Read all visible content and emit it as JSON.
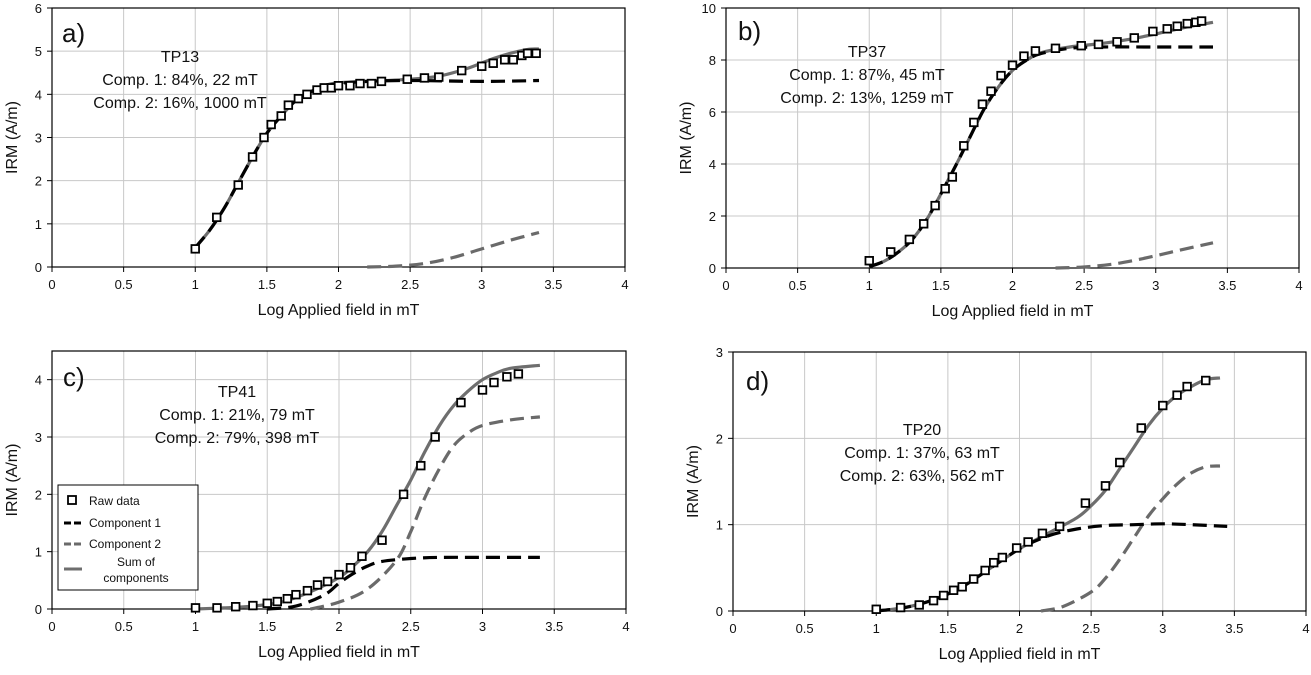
{
  "chart_data": [
    {
      "type": "scatter",
      "panel_label": "a)",
      "sample": "TP13",
      "comp1_text": "Comp. 1: 84%,  22 mT",
      "comp2_text": "Comp. 2: 16%, 1000 mT",
      "xlabel": "Log Applied field in mT",
      "ylabel": "IRM (A/m)",
      "xlim": [
        0,
        4
      ],
      "ylim": [
        0,
        6
      ],
      "xticks": [
        "0",
        "0.5",
        "1",
        "1.5",
        "2",
        "2.5",
        "3",
        "3.5",
        "4"
      ],
      "yticks": [
        "0",
        "1",
        "2",
        "3",
        "4",
        "5",
        "6"
      ],
      "grid": true,
      "series": [
        {
          "name": "Raw data",
          "style": "square-marker",
          "x": [
            1.0,
            1.15,
            1.3,
            1.4,
            1.48,
            1.53,
            1.6,
            1.65,
            1.72,
            1.78,
            1.85,
            1.9,
            1.95,
            2.0,
            2.08,
            2.15,
            2.23,
            2.3,
            2.48,
            2.6,
            2.7,
            2.86,
            3.0,
            3.08,
            3.16,
            3.22,
            3.28,
            3.32,
            3.38
          ],
          "y": [
            0.42,
            1.15,
            1.9,
            2.55,
            3.0,
            3.3,
            3.5,
            3.75,
            3.9,
            4.0,
            4.1,
            4.15,
            4.15,
            4.2,
            4.2,
            4.25,
            4.25,
            4.3,
            4.35,
            4.38,
            4.4,
            4.55,
            4.65,
            4.72,
            4.8,
            4.8,
            4.9,
            4.95,
            4.95
          ]
        },
        {
          "name": "Component 1",
          "style": "black-dash",
          "x": [
            1.0,
            1.1,
            1.2,
            1.3,
            1.4,
            1.5,
            1.6,
            1.7,
            1.8,
            1.9,
            2.0,
            2.2,
            2.5,
            3.0,
            3.4
          ],
          "y": [
            0.45,
            0.85,
            1.35,
            1.95,
            2.55,
            3.1,
            3.5,
            3.85,
            4.05,
            4.18,
            4.25,
            4.3,
            4.32,
            4.3,
            4.32
          ]
        },
        {
          "name": "Component 2",
          "style": "grey-dash",
          "x": [
            2.2,
            2.4,
            2.6,
            2.8,
            3.0,
            3.2,
            3.4
          ],
          "y": [
            0.0,
            0.02,
            0.08,
            0.22,
            0.42,
            0.62,
            0.8
          ]
        },
        {
          "name": "Sum of components",
          "style": "grey-solid",
          "x": [
            1.0,
            1.1,
            1.2,
            1.3,
            1.4,
            1.5,
            1.6,
            1.7,
            1.8,
            1.9,
            2.0,
            2.2,
            2.5,
            2.7,
            2.9,
            3.1,
            3.3,
            3.4
          ],
          "y": [
            0.45,
            0.85,
            1.35,
            1.95,
            2.55,
            3.1,
            3.5,
            3.85,
            4.05,
            4.2,
            4.27,
            4.3,
            4.35,
            4.42,
            4.6,
            4.85,
            5.03,
            5.05
          ]
        }
      ]
    },
    {
      "type": "scatter",
      "panel_label": "b)",
      "sample": "TP37",
      "comp1_text": "Comp. 1: 87%,  45 mT",
      "comp2_text": "Comp. 2: 13%, 1259 mT",
      "xlabel": "Log Applied field in mT",
      "ylabel": "IRM (A/m)",
      "xlim": [
        0,
        4
      ],
      "ylim": [
        0,
        10
      ],
      "xticks": [
        "0",
        "0.5",
        "1",
        "1.5",
        "2",
        "2.5",
        "3",
        "3.5",
        "4"
      ],
      "yticks": [
        "0",
        "2",
        "4",
        "6",
        "8",
        "10"
      ],
      "grid": true,
      "series": [
        {
          "name": "Raw data",
          "style": "square-marker",
          "x": [
            1.0,
            1.15,
            1.28,
            1.38,
            1.46,
            1.53,
            1.58,
            1.66,
            1.73,
            1.79,
            1.85,
            1.92,
            2.0,
            2.08,
            2.16,
            2.3,
            2.48,
            2.6,
            2.73,
            2.85,
            2.98,
            3.08,
            3.15,
            3.22,
            3.28,
            3.32
          ],
          "y": [
            0.28,
            0.62,
            1.1,
            1.7,
            2.4,
            3.05,
            3.5,
            4.7,
            5.6,
            6.3,
            6.8,
            7.4,
            7.8,
            8.15,
            8.35,
            8.45,
            8.55,
            8.6,
            8.7,
            8.85,
            9.1,
            9.2,
            9.3,
            9.4,
            9.45,
            9.5
          ]
        },
        {
          "name": "Component 1",
          "style": "black-dash",
          "x": [
            1.0,
            1.1,
            1.2,
            1.3,
            1.4,
            1.5,
            1.6,
            1.7,
            1.8,
            1.9,
            2.0,
            2.1,
            2.2,
            2.4,
            2.6,
            3.0,
            3.4
          ],
          "y": [
            0.05,
            0.25,
            0.6,
            1.1,
            1.85,
            2.85,
            3.9,
            5.0,
            6.1,
            6.95,
            7.6,
            8.0,
            8.25,
            8.45,
            8.5,
            8.5,
            8.5
          ]
        },
        {
          "name": "Component 2",
          "style": "grey-dash",
          "x": [
            2.3,
            2.5,
            2.7,
            2.9,
            3.1,
            3.3,
            3.4
          ],
          "y": [
            0.0,
            0.04,
            0.15,
            0.35,
            0.6,
            0.85,
            0.97
          ]
        },
        {
          "name": "Sum of components",
          "style": "grey-solid",
          "x": [
            1.0,
            1.1,
            1.2,
            1.3,
            1.4,
            1.5,
            1.6,
            1.7,
            1.8,
            1.9,
            2.0,
            2.1,
            2.2,
            2.4,
            2.6,
            2.8,
            3.0,
            3.2,
            3.4
          ],
          "y": [
            0.05,
            0.25,
            0.6,
            1.1,
            1.85,
            2.85,
            3.9,
            5.0,
            6.1,
            6.95,
            7.6,
            8.0,
            8.28,
            8.5,
            8.62,
            8.78,
            9.0,
            9.25,
            9.45
          ]
        }
      ]
    },
    {
      "type": "scatter",
      "panel_label": "c)",
      "sample": "TP41",
      "comp1_text": "Comp. 1: 21%,  79 mT",
      "comp2_text": "Comp. 2: 79%, 398 mT",
      "xlabel": "Log Applied field in mT",
      "ylabel": "IRM (A/m)",
      "xlim": [
        0,
        4
      ],
      "ylim": [
        0,
        4.5
      ],
      "xticks": [
        "0",
        "0.5",
        "1",
        "1.5",
        "2",
        "2.5",
        "3",
        "3.5",
        "4"
      ],
      "yticks": [
        "0",
        "1",
        "2",
        "3",
        "4"
      ],
      "grid": true,
      "legend": {
        "placement": "lower-left",
        "entries": [
          "Raw data",
          "Component 1",
          "Component 2",
          "Sum of",
          "components"
        ]
      },
      "series": [
        {
          "name": "Raw data",
          "style": "square-marker",
          "x": [
            1.0,
            1.15,
            1.28,
            1.4,
            1.5,
            1.57,
            1.64,
            1.7,
            1.78,
            1.85,
            1.92,
            2.0,
            2.08,
            2.16,
            2.3,
            2.45,
            2.57,
            2.67,
            2.85,
            3.0,
            3.08,
            3.17,
            3.25
          ],
          "y": [
            0.02,
            0.02,
            0.04,
            0.06,
            0.1,
            0.13,
            0.18,
            0.25,
            0.32,
            0.42,
            0.48,
            0.6,
            0.72,
            0.92,
            1.2,
            2.0,
            2.5,
            3.0,
            3.6,
            3.82,
            3.95,
            4.05,
            4.1
          ]
        },
        {
          "name": "Component 1",
          "style": "black-dash",
          "x": [
            1.5,
            1.7,
            1.9,
            2.0,
            2.1,
            2.2,
            2.3,
            2.5,
            2.7,
            3.0,
            3.4
          ],
          "y": [
            0.0,
            0.05,
            0.25,
            0.45,
            0.62,
            0.75,
            0.83,
            0.88,
            0.9,
            0.9,
            0.9
          ]
        },
        {
          "name": "Component 2",
          "style": "grey-dash",
          "x": [
            1.8,
            2.0,
            2.2,
            2.4,
            2.5,
            2.6,
            2.7,
            2.8,
            2.9,
            3.0,
            3.2,
            3.4
          ],
          "y": [
            0.0,
            0.12,
            0.35,
            0.85,
            1.35,
            1.95,
            2.45,
            2.85,
            3.07,
            3.2,
            3.3,
            3.35
          ]
        },
        {
          "name": "Sum of components",
          "style": "grey-solid",
          "x": [
            1.0,
            1.2,
            1.4,
            1.6,
            1.8,
            2.0,
            2.1,
            2.2,
            2.3,
            2.4,
            2.5,
            2.6,
            2.7,
            2.8,
            2.9,
            3.0,
            3.1,
            3.2,
            3.4
          ],
          "y": [
            0.0,
            0.02,
            0.05,
            0.12,
            0.3,
            0.55,
            0.75,
            1.0,
            1.35,
            1.8,
            2.25,
            2.75,
            3.2,
            3.55,
            3.8,
            4.0,
            4.12,
            4.2,
            4.25
          ]
        }
      ]
    },
    {
      "type": "scatter",
      "panel_label": "d)",
      "sample": "TP20",
      "comp1_text": "Comp. 1: 37%,  63 mT",
      "comp2_text": "Comp. 2: 63%, 562 mT",
      "xlabel": "Log Applied field in mT",
      "ylabel": "IRM (A/m)",
      "xlim": [
        0,
        4
      ],
      "ylim": [
        0,
        3
      ],
      "xticks": [
        "0",
        "0.5",
        "1",
        "1.5",
        "2",
        "2.5",
        "3",
        "3.5",
        "4"
      ],
      "yticks": [
        "0",
        "1",
        "2",
        "3"
      ],
      "grid": true,
      "series": [
        {
          "name": "Raw data",
          "style": "square-marker",
          "x": [
            1.0,
            1.17,
            1.3,
            1.4,
            1.47,
            1.54,
            1.6,
            1.68,
            1.76,
            1.82,
            1.88,
            1.98,
            2.06,
            2.16,
            2.28,
            2.46,
            2.6,
            2.7,
            2.85,
            3.0,
            3.1,
            3.17,
            3.3
          ],
          "y": [
            0.02,
            0.04,
            0.07,
            0.12,
            0.18,
            0.24,
            0.28,
            0.37,
            0.47,
            0.56,
            0.62,
            0.73,
            0.8,
            0.9,
            0.98,
            1.25,
            1.45,
            1.72,
            2.12,
            2.38,
            2.5,
            2.6,
            2.67
          ]
        },
        {
          "name": "Component 1",
          "style": "black-dash",
          "x": [
            1.0,
            1.2,
            1.4,
            1.6,
            1.8,
            2.0,
            2.2,
            2.4,
            2.6,
            2.8,
            3.0,
            3.2,
            3.45
          ],
          "y": [
            0.0,
            0.04,
            0.13,
            0.28,
            0.5,
            0.72,
            0.87,
            0.95,
            0.99,
            1.0,
            1.01,
            1.0,
            0.98
          ]
        },
        {
          "name": "Component 2",
          "style": "grey-dash",
          "x": [
            2.15,
            2.3,
            2.5,
            2.6,
            2.7,
            2.8,
            2.9,
            3.0,
            3.1,
            3.2,
            3.3,
            3.4
          ],
          "y": [
            0.0,
            0.05,
            0.22,
            0.38,
            0.6,
            0.85,
            1.1,
            1.3,
            1.47,
            1.6,
            1.67,
            1.68
          ]
        },
        {
          "name": "Sum of components",
          "style": "grey-solid",
          "x": [
            1.0,
            1.2,
            1.4,
            1.6,
            1.8,
            2.0,
            2.2,
            2.4,
            2.5,
            2.6,
            2.7,
            2.8,
            2.9,
            3.0,
            3.1,
            3.2,
            3.3,
            3.4
          ],
          "y": [
            0.0,
            0.04,
            0.13,
            0.28,
            0.5,
            0.72,
            0.9,
            1.08,
            1.22,
            1.4,
            1.65,
            1.9,
            2.15,
            2.35,
            2.5,
            2.6,
            2.68,
            2.7
          ]
        }
      ]
    }
  ]
}
